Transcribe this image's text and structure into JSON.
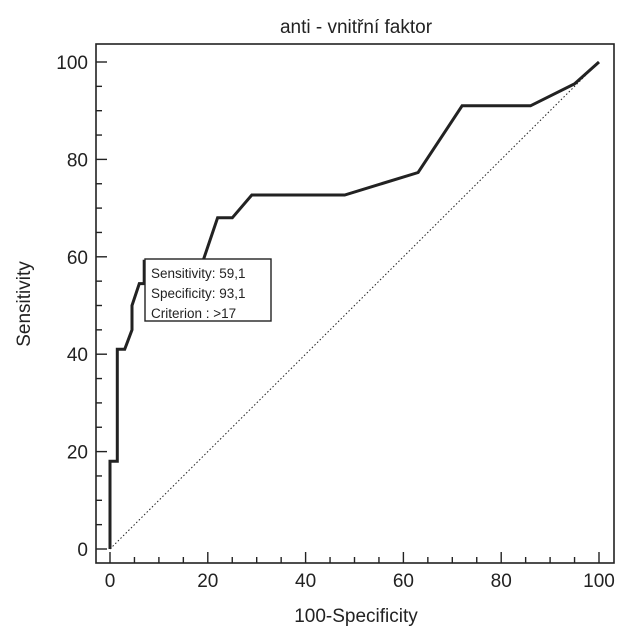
{
  "chart_data": {
    "type": "line",
    "title": "anti - vnitřní faktor",
    "xlabel": "100-Specificity",
    "ylabel": "Sensitivity",
    "xlim": [
      0,
      100
    ],
    "ylim": [
      0,
      100
    ],
    "xticks": [
      "0",
      "20",
      "40",
      "60",
      "80",
      "100"
    ],
    "yticks": [
      "0",
      "20",
      "40",
      "60",
      "80",
      "100"
    ],
    "grid": false,
    "series": [
      {
        "values": [
          [
            0,
            0
          ],
          [
            0,
            9
          ],
          [
            0,
            18
          ],
          [
            1.5,
            18
          ],
          [
            1.5,
            23
          ],
          [
            1.5,
            36
          ],
          [
            1.5,
            41
          ],
          [
            3,
            41
          ],
          [
            4.5,
            45
          ],
          [
            4.5,
            50
          ],
          [
            6,
            54.5
          ],
          [
            7,
            54.5
          ],
          [
            7,
            59.1
          ],
          [
            19,
            59.1
          ],
          [
            22,
            68
          ],
          [
            25,
            68
          ],
          [
            29,
            72.7
          ],
          [
            40,
            72.7
          ],
          [
            48,
            72.7
          ],
          [
            63,
            77.3
          ],
          [
            72,
            91
          ],
          [
            86,
            91
          ],
          [
            95,
            95.5
          ],
          [
            100,
            100
          ]
        ],
        "color": "#222222"
      },
      {
        "values": [
          [
            0,
            0
          ],
          [
            100,
            100
          ]
        ],
        "color": "#222222",
        "style": "dotted"
      }
    ],
    "annotation": {
      "lines": [
        "Sensitivity: 59,1",
        "Specificity: 93,1",
        "Criterion : >17"
      ],
      "anchor": [
        7,
        59.1
      ]
    }
  }
}
